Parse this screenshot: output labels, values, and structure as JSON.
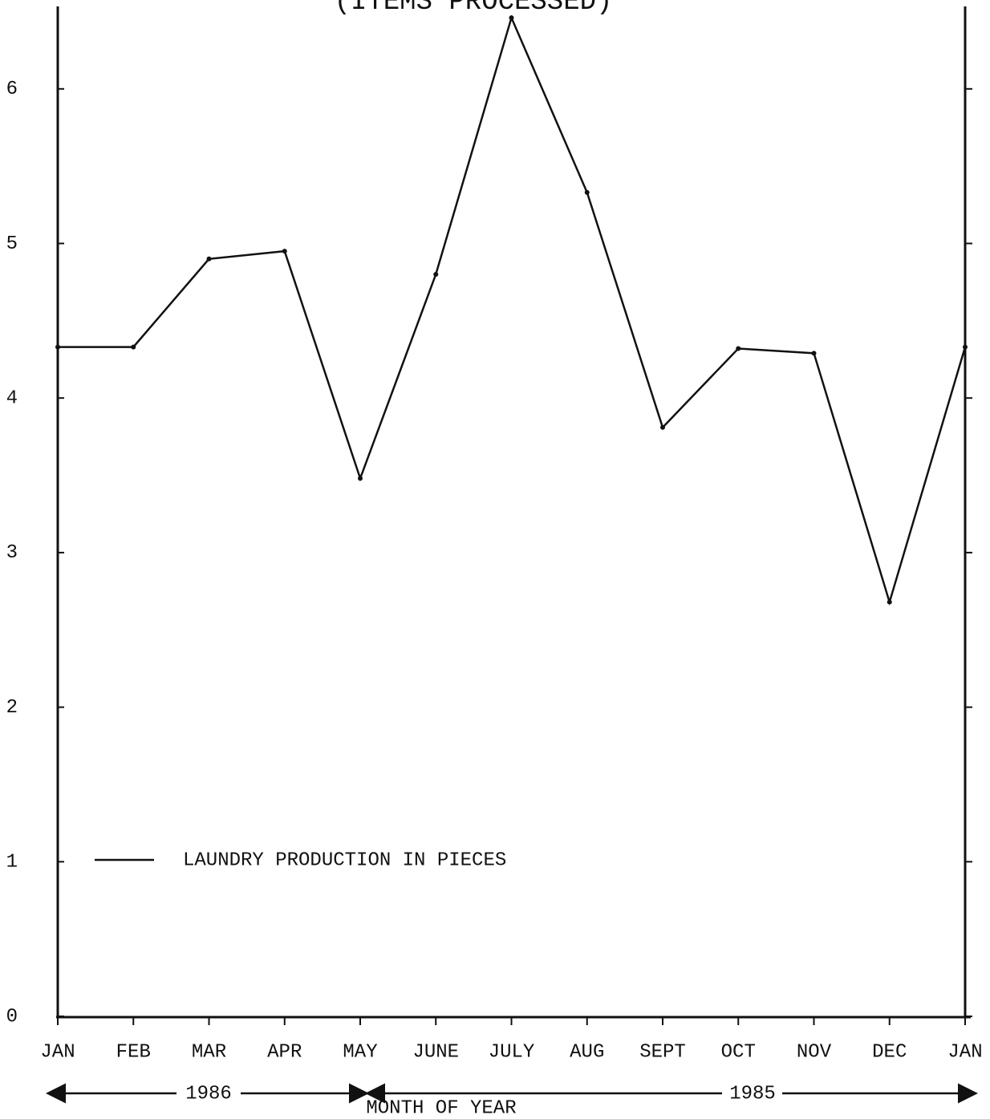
{
  "chart_data": {
    "type": "line",
    "title": "(ITEMS PROCESSED)",
    "x_label": "MONTH OF YEAR",
    "categories": [
      "JAN",
      "FEB",
      "MAR",
      "APR",
      "MAY",
      "JUNE",
      "JULY",
      "AUG",
      "SEPT",
      "OCT",
      "NOV",
      "DEC",
      "JAN"
    ],
    "series": [
      {
        "name": "LAUNDRY PRODUCTION IN PIECES",
        "color": "#111111",
        "values": [
          4.33,
          4.33,
          4.9,
          4.95,
          3.48,
          4.8,
          6.46,
          5.33,
          3.81,
          4.32,
          4.29,
          2.68,
          4.33
        ]
      }
    ],
    "ylim": [
      0,
      6.5
    ],
    "yticks": [
      0,
      1,
      2,
      3,
      4,
      5,
      6
    ],
    "grid": false,
    "legend": "lower left",
    "annotations": [
      "1986",
      "1985"
    ]
  }
}
